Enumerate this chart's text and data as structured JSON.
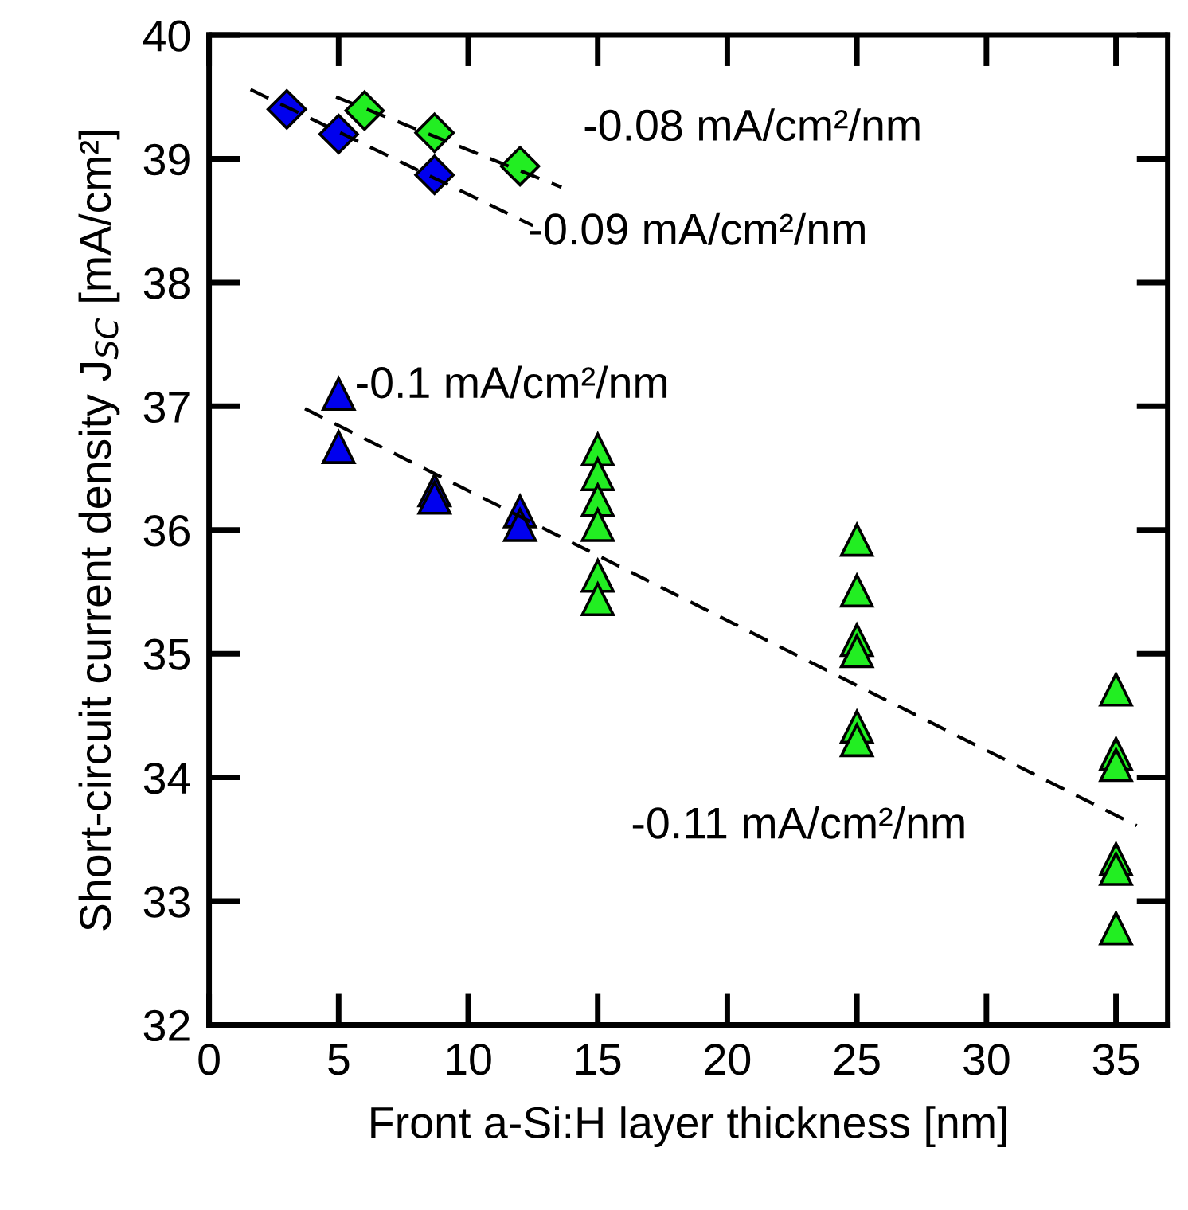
{
  "chart_data": {
    "type": "scatter",
    "xlabel": "Front a-Si:H layer thickness [nm]",
    "ylabel": "Short-circuit current density J$_{SC}$ [mA/cm²]",
    "xlim": [
      0,
      37
    ],
    "xticks": [
      0,
      5,
      10,
      15,
      20,
      25,
      30,
      35
    ],
    "ylim": [
      32,
      40
    ],
    "yticks": [
      32,
      33,
      34,
      35,
      36,
      37,
      38,
      39,
      40
    ],
    "grid": false,
    "legend": false,
    "series": [
      {
        "marker": "diamond",
        "color": "#0000ee",
        "x": [
          3,
          5,
          8.7
        ],
        "values": [
          39.4,
          39.2,
          38.87
        ]
      },
      {
        "marker": "diamond",
        "color": "#22ee22",
        "x": [
          6,
          8.7,
          12
        ],
        "values": [
          39.39,
          39.21,
          38.94
        ]
      },
      {
        "marker": "triangle",
        "color": "#0000ee",
        "x": [
          5,
          5,
          8.7,
          8.7,
          12,
          12
        ],
        "values": [
          37.1,
          36.67,
          36.32,
          36.26,
          36.15,
          36.04
        ]
      },
      {
        "marker": "triangle",
        "color": "#22ee22",
        "x": [
          15,
          15,
          15,
          15,
          15,
          15,
          25,
          25,
          25,
          25,
          25,
          25,
          35,
          35,
          35,
          35,
          35,
          35
        ],
        "values": [
          36.65,
          36.45,
          36.24,
          36.04,
          35.63,
          35.44,
          35.92,
          35.51,
          35.11,
          35.02,
          34.41,
          34.3,
          34.71,
          34.19,
          34.1,
          33.34,
          33.26,
          32.78
        ]
      },
      {
        "type": "line",
        "line_style": "dashed",
        "marker": "none",
        "color": "#000000",
        "x": [
          1.6,
          12.5
        ],
        "values": [
          39.56,
          38.46
        ]
      },
      {
        "type": "line",
        "line_style": "dashed",
        "marker": "none",
        "color": "#000000",
        "x": [
          4.9,
          13.6
        ],
        "values": [
          39.5,
          38.77
        ]
      },
      {
        "type": "line",
        "line_style": "dashed",
        "marker": "none",
        "color": "#000000",
        "x": [
          3.7,
          35.8
        ],
        "values": [
          36.98,
          33.61
        ]
      }
    ],
    "annotations": [
      "-0.08 mA/cm²/nm",
      "-0.09 mA/cm²/nm",
      "-0.1 mA/cm²/nm",
      "-0.11 mA/cm²/nm"
    ]
  }
}
